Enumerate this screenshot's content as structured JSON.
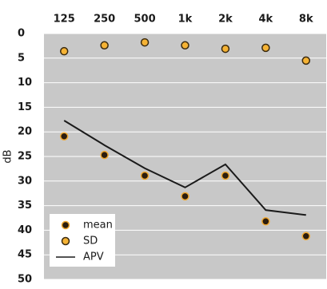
{
  "chart_data": {
    "type": "line",
    "categories": [
      "125",
      "250",
      "500",
      "1k",
      "2k",
      "4k",
      "8k"
    ],
    "x_axis_position": "top",
    "y_label": "dB",
    "ylim": [
      50,
      0
    ],
    "yticks": [
      0,
      5,
      10,
      15,
      20,
      25,
      30,
      35,
      40,
      45,
      50
    ],
    "grid": true,
    "legend": "lower left",
    "series": [
      {
        "name": "mean",
        "style": "marker",
        "color": "#2b1d0e",
        "edge": "#f0a830",
        "values": [
          20.9,
          24.7,
          28.9,
          33.1,
          28.9,
          38.2,
          41.2
        ]
      },
      {
        "name": "SD",
        "style": "marker",
        "color": "#f5b335",
        "edge": "#3a2a10",
        "values": [
          3.6,
          2.4,
          1.8,
          2.4,
          3.1,
          2.9,
          5.5
        ]
      },
      {
        "name": "APV",
        "style": "line",
        "color": "#1a1a1a",
        "values": [
          17.7,
          22.7,
          27.4,
          31.3,
          26.6,
          35.9,
          36.9
        ]
      }
    ]
  }
}
